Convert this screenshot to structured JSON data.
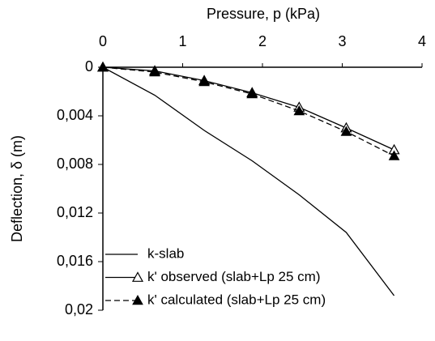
{
  "chart_data": {
    "type": "line",
    "xlabel": "Pressure, p (kPa)",
    "ylabel": "Deflection, δ (m)",
    "x": [
      0,
      0.65,
      1.27,
      1.87,
      2.46,
      3.05,
      3.65
    ],
    "xlim": [
      0,
      4
    ],
    "xticks": [
      0,
      1,
      2,
      3,
      4
    ],
    "x_axis_position": "top",
    "ylim": [
      0,
      0.02
    ],
    "y_inverted": true,
    "yticks": [
      0,
      {
        "value": 0.004,
        "label": "0,004"
      },
      {
        "value": 0.008,
        "label": "0,008"
      },
      {
        "value": 0.012,
        "label": "0,012"
      },
      {
        "value": 0.016,
        "label": "0,016"
      },
      {
        "value": 0.02,
        "label": "0,02"
      }
    ],
    "legend": "lower right",
    "series": [
      {
        "name": "k-slab",
        "color": "#000000",
        "marker": "none",
        "dashed": false,
        "values": [
          0,
          0.0023,
          0.0052,
          0.0077,
          0.0105,
          0.0136,
          0.0188
        ]
      },
      {
        "name": "k' observed (slab+Lp 25 cm)",
        "color": "#000000",
        "marker": "open-triangle",
        "dashed": false,
        "values": [
          0,
          0.0003,
          0.0011,
          0.0021,
          0.0033,
          0.005,
          0.0068
        ]
      },
      {
        "name": "k' calculated (slab+Lp 25 cm)",
        "color": "#000000",
        "marker": "filled-triangle",
        "dashed": true,
        "values": [
          0,
          0.0004,
          0.0012,
          0.0022,
          0.0036,
          0.0053,
          0.0073
        ]
      }
    ]
  }
}
